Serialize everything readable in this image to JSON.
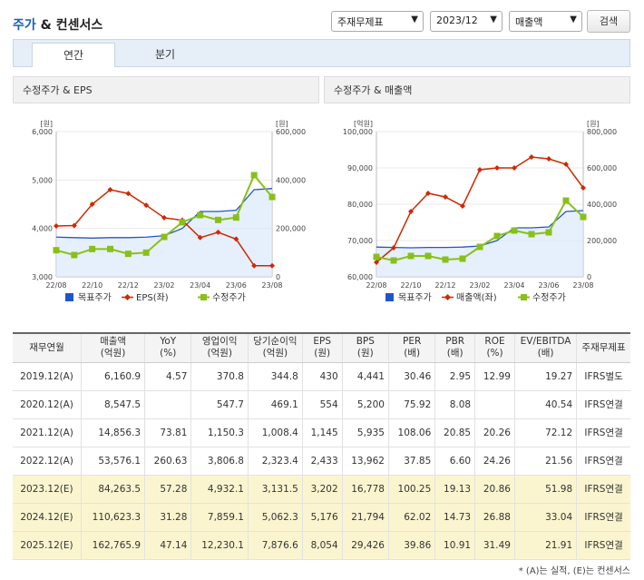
{
  "header": {
    "title_blue": "주가",
    "title_rest": " & 컨센서스",
    "filter1": "주재무제표",
    "filter2": "2023/12",
    "filter3": "매출액",
    "search_label": "검색"
  },
  "tabs": [
    {
      "label": "연간"
    },
    {
      "label": "분기"
    }
  ],
  "colors": {
    "blue": "#2255cc",
    "red": "#cc2a00",
    "green": "#88c018"
  },
  "chart_data": [
    {
      "type": "line",
      "title": "수정주가 & EPS",
      "left_unit": "[원]",
      "right_unit": "[원]",
      "categories": [
        "22/08",
        "22/09",
        "22/10",
        "22/11",
        "22/12",
        "23/01",
        "23/02",
        "23/03",
        "23/04",
        "23/05",
        "23/06",
        "23/07",
        "23/08"
      ],
      "x_tick_labels": [
        "22/08",
        "22/10",
        "22/12",
        "23/02",
        "23/04",
        "23/06",
        "23/08"
      ],
      "left_ticks": [
        "6,000",
        "5,000",
        "4,000",
        "3,000"
      ],
      "left_range": [
        3000,
        6000
      ],
      "right_ticks": [
        "600,000",
        "400,000",
        "200,000",
        "0"
      ],
      "right_range": [
        0,
        600000
      ],
      "series": [
        {
          "name": "목표주가",
          "axis": "right",
          "values": [
            164000,
            162000,
            160000,
            162000,
            162000,
            164000,
            170000,
            200000,
            270000,
            270000,
            275000,
            360000,
            365000
          ]
        },
        {
          "name": "EPS(좌)",
          "axis": "left",
          "values": [
            4050,
            4060,
            4500,
            4800,
            4720,
            4480,
            4220,
            4170,
            3810,
            3920,
            3780,
            3230,
            3230
          ]
        },
        {
          "name": "수정주가",
          "axis": "right",
          "values": [
            110000,
            90000,
            115000,
            115000,
            95000,
            100000,
            165000,
            225000,
            255000,
            235000,
            245000,
            420000,
            330000
          ]
        }
      ],
      "legend": [
        "목표주가",
        "EPS(좌)",
        "수정주가"
      ]
    },
    {
      "type": "line",
      "title": "수정주가 & 매출액",
      "left_unit": "[억원]",
      "right_unit": "[원]",
      "categories": [
        "22/08",
        "22/09",
        "22/10",
        "22/11",
        "22/12",
        "23/01",
        "23/02",
        "23/03",
        "23/04",
        "23/05",
        "23/06",
        "23/07",
        "23/08"
      ],
      "x_tick_labels": [
        "22/08",
        "22/10",
        "22/12",
        "23/02",
        "23/04",
        "23/06",
        "23/08"
      ],
      "left_ticks": [
        "100,000",
        "90,000",
        "80,000",
        "70,000",
        "60,000"
      ],
      "left_range": [
        60000,
        100000
      ],
      "right_ticks": [
        "800,000",
        "600,000",
        "400,000",
        "200,000",
        "0"
      ],
      "right_range": [
        0,
        800000
      ],
      "series": [
        {
          "name": "목표주가",
          "axis": "right",
          "values": [
            164000,
            162000,
            160000,
            162000,
            162000,
            164000,
            170000,
            200000,
            270000,
            270000,
            275000,
            360000,
            365000
          ]
        },
        {
          "name": "매출액(좌)",
          "axis": "left",
          "values": [
            64000,
            68000,
            78000,
            83000,
            82000,
            79500,
            89500,
            90000,
            90000,
            93000,
            92500,
            91000,
            84500
          ]
        },
        {
          "name": "수정주가",
          "axis": "right",
          "values": [
            110000,
            90000,
            115000,
            115000,
            95000,
            100000,
            165000,
            225000,
            255000,
            235000,
            245000,
            420000,
            330000
          ]
        }
      ],
      "legend": [
        "목표주가",
        "매출액(좌)",
        "수정주가"
      ]
    }
  ],
  "table": {
    "headers": [
      [
        "재무연월",
        ""
      ],
      [
        "매출액",
        "(억원)"
      ],
      [
        "YoY",
        "(%)"
      ],
      [
        "영업이익",
        "(억원)"
      ],
      [
        "당기순이익",
        "(억원)"
      ],
      [
        "EPS",
        "(원)"
      ],
      [
        "BPS",
        "(원)"
      ],
      [
        "PER",
        "(배)"
      ],
      [
        "PBR",
        "(배)"
      ],
      [
        "ROE",
        "(%)"
      ],
      [
        "EV/EBITDA",
        "(배)"
      ],
      [
        "주재무제표",
        ""
      ]
    ],
    "rows": [
      {
        "estimate": false,
        "cells": [
          "2019.12(A)",
          "6,160.9",
          "4.57",
          "370.8",
          "344.8",
          "430",
          "4,441",
          "30.46",
          "2.95",
          "12.99",
          "19.27",
          "IFRS별도"
        ]
      },
      {
        "estimate": false,
        "cells": [
          "2020.12(A)",
          "8,547.5",
          "",
          "547.7",
          "469.1",
          "554",
          "5,200",
          "75.92",
          "8.08",
          "",
          "40.54",
          "IFRS연결"
        ]
      },
      {
        "estimate": false,
        "cells": [
          "2021.12(A)",
          "14,856.3",
          "73.81",
          "1,150.3",
          "1,008.4",
          "1,145",
          "5,935",
          "108.06",
          "20.85",
          "20.26",
          "72.12",
          "IFRS연결"
        ]
      },
      {
        "estimate": false,
        "cells": [
          "2022.12(A)",
          "53,576.1",
          "260.63",
          "3,806.8",
          "2,323.4",
          "2,433",
          "13,962",
          "37.85",
          "6.60",
          "24.26",
          "21.56",
          "IFRS연결"
        ]
      },
      {
        "estimate": true,
        "cells": [
          "2023.12(E)",
          "84,263.5",
          "57.28",
          "4,932.1",
          "3,131.5",
          "3,202",
          "16,778",
          "100.25",
          "19.13",
          "20.86",
          "51.98",
          "IFRS연결"
        ]
      },
      {
        "estimate": true,
        "cells": [
          "2024.12(E)",
          "110,623.3",
          "31.28",
          "7,859.1",
          "5,062.3",
          "5,176",
          "21,794",
          "62.02",
          "14.73",
          "26.88",
          "33.04",
          "IFRS연결"
        ]
      },
      {
        "estimate": true,
        "cells": [
          "2025.12(E)",
          "162,765.9",
          "47.14",
          "12,230.1",
          "7,876.6",
          "8,054",
          "29,426",
          "39.86",
          "10.91",
          "31.49",
          "21.91",
          "IFRS연결"
        ]
      }
    ],
    "note": "* (A)는 실적, (E)는 컨센서스"
  }
}
